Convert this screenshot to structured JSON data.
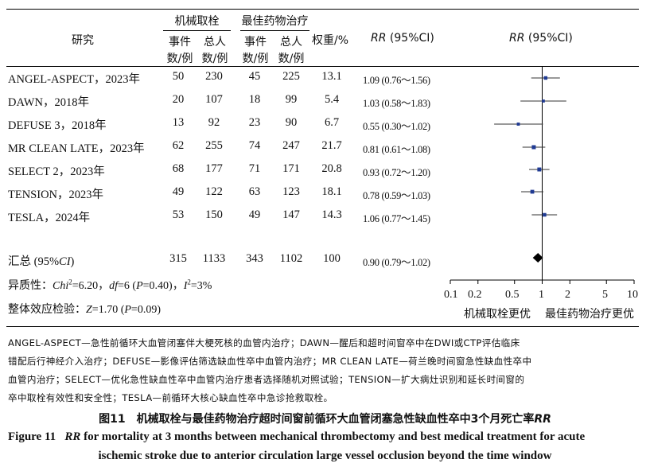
{
  "header": {
    "study": "研究",
    "group1": "机械取栓",
    "group2": "最佳药物治疗",
    "events": "事件",
    "total": "总人",
    "count_unit": "数/例",
    "weight": "权重/%",
    "rr_ci_1": "RR",
    "rr_ci_2": "(95%CI)",
    "plot_rr": "RR",
    "plot_ci": "(95%CI)"
  },
  "studies": [
    {
      "study": "ANGEL-ASPECT，2023年",
      "e1": "50",
      "n1": "230",
      "e2": "45",
      "n2": "225",
      "weight": "13.1",
      "rr_text": "1.09 (0.76～1.56)"
    },
    {
      "study": "DAWN，2018年",
      "e1": "20",
      "n1": "107",
      "e2": "18",
      "n2": "99",
      "weight": "5.4",
      "rr_text": "1.03 (0.58～1.83)"
    },
    {
      "study": "DEFUSE 3，2018年",
      "e1": "13",
      "n1": "92",
      "e2": "23",
      "n2": "90",
      "weight": "6.7",
      "rr_text": "0.55 (0.30～1.02)"
    },
    {
      "study": "MR CLEAN LATE，2023年",
      "e1": "62",
      "n1": "255",
      "e2": "74",
      "n2": "247",
      "weight": "21.7",
      "rr_text": "0.81 (0.61～1.08)"
    },
    {
      "study": "SELECT 2，2023年",
      "e1": "68",
      "n1": "177",
      "e2": "71",
      "n2": "171",
      "weight": "20.8",
      "rr_text": "0.93 (0.72～1.20)"
    },
    {
      "study": "TENSION，2023年",
      "e1": "49",
      "n1": "122",
      "e2": "63",
      "n2": "123",
      "weight": "18.1",
      "rr_text": "0.78 (0.59～1.03)"
    },
    {
      "study": "TESLA，2024年",
      "e1": "53",
      "n1": "150",
      "e2": "49",
      "n2": "147",
      "weight": "14.3",
      "rr_text": "1.06 (0.77～1.45)"
    }
  ],
  "summary": {
    "label_pre": "汇总 (95%",
    "label_ci": "CI",
    "label_post": ")",
    "e1": "315",
    "n1": "1133",
    "e2": "343",
    "n2": "1102",
    "weight": "100",
    "rr_text": "0.90 (0.79～1.02)"
  },
  "heterogeneity": {
    "prefix": "异质性：",
    "chi": "Chi",
    "chi_val": "=6.20，",
    "df": "df",
    "df_val": "=6 (",
    "p": "P",
    "p_val": "=0.40)，",
    "i": "I",
    "i_val": "=3%"
  },
  "effect_test": {
    "prefix": "整体效应检验：",
    "z": "Z",
    "z_val": "=1.70 (",
    "p": "P",
    "p_val": "=0.09)"
  },
  "axis": {
    "ticks": [
      "0.1",
      "0.2",
      "0.5",
      "1",
      "2",
      "5",
      "10"
    ],
    "left_label": "机械取栓更优",
    "right_label": "最佳药物治疗更优"
  },
  "notes": [
    "ANGEL-ASPECT—急性前循环大血管闭塞伴大梗死核的血管内治疗；DAWN—醒后和超时间窗卒中在DWI或CTP评估临床",
    "错配后行神经介入治疗；DEFUSE—影像评估筛选缺血性卒中血管内治疗；MR CLEAN LATE—荷兰晚时间窗急性缺血性卒中",
    "血管内治疗；SELECT—优化急性缺血性卒中血管内治疗患者选择随机对照试验；TENSION—扩大病灶识别和延长时间窗的",
    "卒中取栓有效性和安全性；TESLA—前循环大核心缺血性卒中急诊抢救取栓。"
  ],
  "caption": {
    "cn_pre": "图11　机械取栓与最佳药物治疗超时间窗前循环大血管闭塞急性缺血性卒中3个月死亡率",
    "cn_rr": "RR",
    "en1_label": "Figure 11",
    "en1_rr": "RR",
    "en1_text": "for mortality at 3 months between mechanical thrombectomy and best medical treatment for acute",
    "en2": "ischemic stroke due to anterior circulation large vessel occlusion beyond the time window"
  },
  "chart_data": {
    "type": "forest",
    "scale": "log",
    "xlim": [
      0.1,
      10
    ],
    "reference": 1,
    "ticks": [
      0.1,
      0.2,
      0.5,
      1,
      2,
      5,
      10
    ],
    "points": [
      {
        "study": "ANGEL-ASPECT，2023年",
        "rr": 1.09,
        "lo": 0.76,
        "hi": 1.56
      },
      {
        "study": "DAWN，2018年",
        "rr": 1.03,
        "lo": 0.58,
        "hi": 1.83
      },
      {
        "study": "DEFUSE 3，2018年",
        "rr": 0.55,
        "lo": 0.3,
        "hi": 1.02
      },
      {
        "study": "MR CLEAN LATE，2023年",
        "rr": 0.81,
        "lo": 0.61,
        "hi": 1.08
      },
      {
        "study": "SELECT 2，2023年",
        "rr": 0.93,
        "lo": 0.72,
        "hi": 1.2
      },
      {
        "study": "TENSION，2023年",
        "rr": 0.78,
        "lo": 0.59,
        "hi": 1.03
      },
      {
        "study": "TESLA，2024年",
        "rr": 1.06,
        "lo": 0.77,
        "hi": 1.45
      }
    ],
    "pooled": {
      "rr": 0.9,
      "lo": 0.79,
      "hi": 1.02
    },
    "marker_color": "#1f3a93",
    "diamond_color": "#000000"
  }
}
